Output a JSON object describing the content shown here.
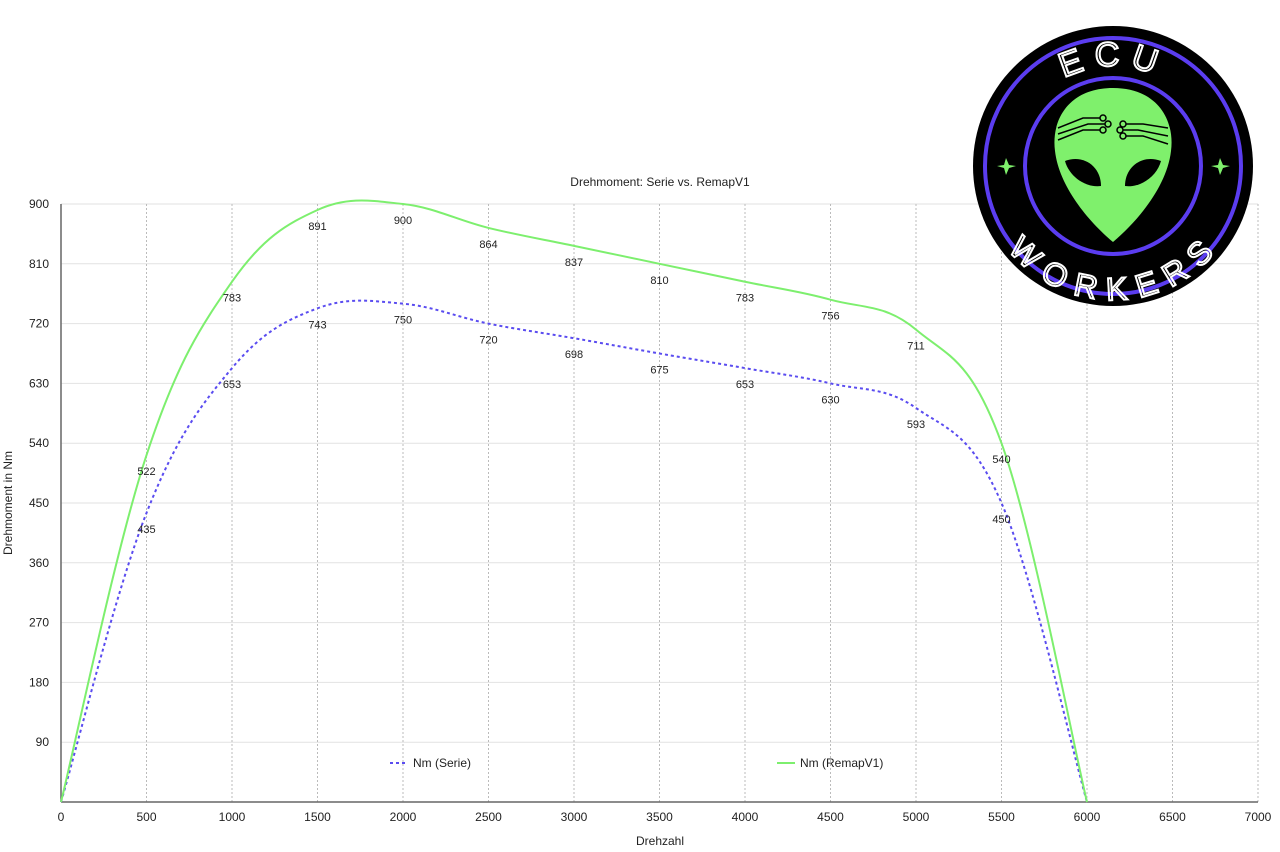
{
  "chart_data": {
    "type": "line",
    "title": "Drehmoment: Serie vs. RemapV1",
    "xlabel": "Drehzahl",
    "ylabel": "Drehmoment in Nm",
    "xlim": [
      0,
      7000
    ],
    "ylim": [
      0,
      900
    ],
    "xticks": [
      0,
      500,
      1000,
      1500,
      2000,
      2500,
      3000,
      3500,
      4000,
      4500,
      5000,
      5500,
      6000,
      6500,
      7000
    ],
    "yticks": [
      90,
      180,
      270,
      360,
      450,
      540,
      630,
      720,
      810,
      900
    ],
    "grid": "vertical dotted, horizontal solid",
    "legend": "bottom-center",
    "x": [
      0,
      500,
      1000,
      1500,
      2000,
      2500,
      3000,
      3500,
      4000,
      4500,
      5000,
      5500,
      6000
    ],
    "series": [
      {
        "name": "Nm (Serie)",
        "color": "#5a4cf0",
        "style": "dashed",
        "values": [
          0,
          435,
          653,
          743,
          750,
          720,
          698,
          675,
          653,
          630,
          593,
          450,
          0
        ]
      },
      {
        "name": "Nm (RemapV1)",
        "color": "#7def6e",
        "style": "solid",
        "values": [
          0,
          522,
          783,
          891,
          900,
          864,
          837,
          810,
          783,
          756,
          711,
          540,
          0
        ]
      }
    ]
  },
  "logo": {
    "top_text": "ECU",
    "bottom_text": "WORKERS",
    "colors": {
      "ring": "#5b3df0",
      "face": "#7ff06c",
      "bg": "#000000"
    }
  }
}
